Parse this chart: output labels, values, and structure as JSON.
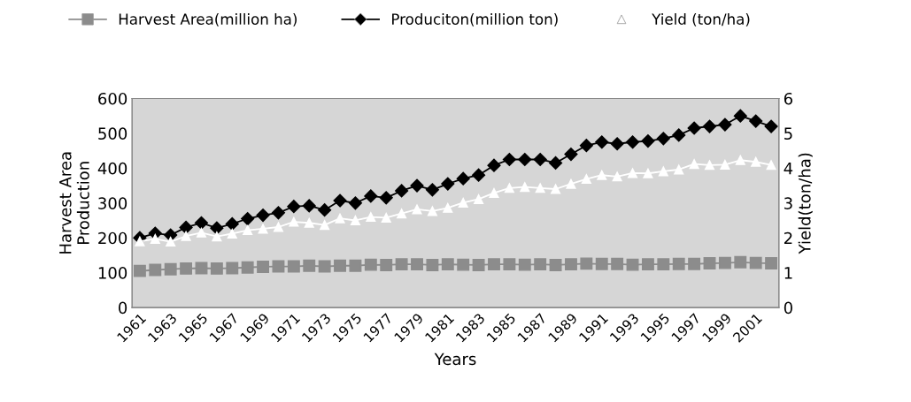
{
  "chart_data": {
    "type": "line",
    "xlabel": "Years",
    "ylabel": "Harvest Area\nProduction",
    "y2label": "Yield(ton/ha)",
    "categories": [
      "1961",
      null,
      "1963",
      null,
      "1965",
      null,
      "1967",
      null,
      "1969",
      null,
      "1971",
      null,
      "1973",
      null,
      "1975",
      null,
      "1977",
      null,
      "1979",
      null,
      "1981",
      null,
      "1983",
      null,
      "1985",
      null,
      "1987",
      null,
      "1989",
      null,
      "1991",
      null,
      "1993",
      null,
      "1995",
      null,
      "1997",
      null,
      "1999",
      null,
      "2001",
      null
    ],
    "series": [
      {
        "name": "Harvest Area(million ha)",
        "color": "#8c8c8c",
        "marker": "square",
        "values": [
          105,
          108,
          110,
          112,
          113,
          112,
          113,
          115,
          117,
          118,
          118,
          120,
          118,
          120,
          120,
          123,
          122,
          124,
          124,
          122,
          124,
          123,
          122,
          124,
          124,
          123,
          124,
          122,
          124,
          126,
          125,
          125,
          123,
          124,
          124,
          125,
          125,
          127,
          128,
          130,
          128,
          127
        ]
      },
      {
        "name": "Produciton(million ton)",
        "color": "#000000",
        "marker": "diamond",
        "values": [
          200,
          213,
          208,
          230,
          243,
          228,
          240,
          255,
          265,
          272,
          290,
          292,
          280,
          307,
          300,
          320,
          315,
          335,
          350,
          338,
          355,
          370,
          380,
          408,
          425,
          425,
          425,
          415,
          440,
          465,
          475,
          470,
          475,
          478,
          485,
          495,
          515,
          520,
          525,
          550,
          535,
          520
        ]
      },
      {
        "name": "Yield (ton/ha)",
        "color": "#ffffff",
        "marker": "triangle",
        "axis": "y2",
        "values": [
          1.9,
          1.97,
          1.89,
          2.05,
          2.15,
          2.04,
          2.12,
          2.22,
          2.26,
          2.31,
          2.46,
          2.43,
          2.37,
          2.56,
          2.5,
          2.6,
          2.58,
          2.7,
          2.82,
          2.77,
          2.86,
          3.01,
          3.11,
          3.29,
          3.43,
          3.46,
          3.43,
          3.4,
          3.55,
          3.69,
          3.8,
          3.76,
          3.86,
          3.85,
          3.91,
          3.96,
          4.12,
          4.09,
          4.1,
          4.23,
          4.18,
          4.09
        ]
      }
    ],
    "ylim": [
      0,
      600
    ],
    "yticks": [
      0,
      100,
      200,
      300,
      400,
      500,
      600
    ],
    "y2lim": [
      0,
      6
    ],
    "y2ticks": [
      0,
      1,
      2,
      3,
      4,
      5,
      6
    ],
    "grid": false,
    "legend": "top"
  }
}
